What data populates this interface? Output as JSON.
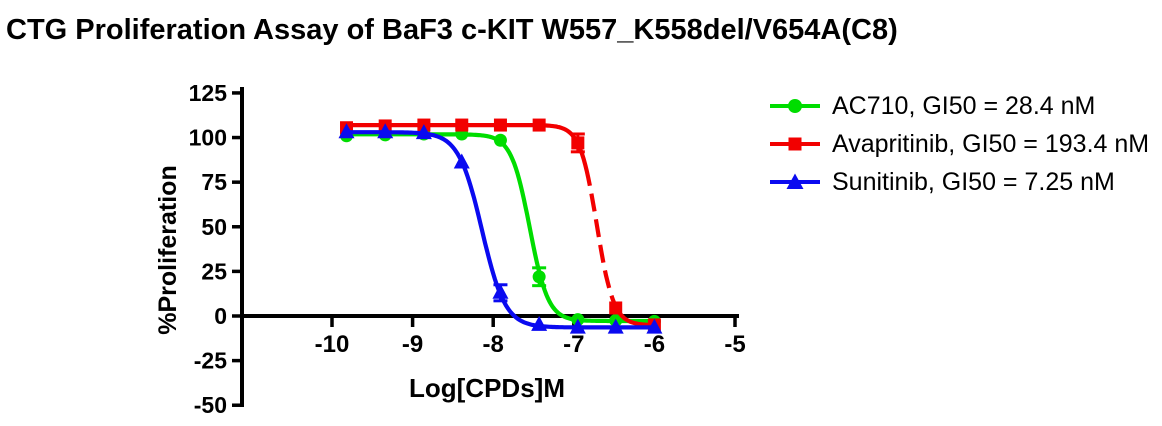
{
  "title": "CTG Proliferation Assay of BaF3 c-KIT W557_K558del/V654A(C8)",
  "legend": {
    "items": [
      {
        "label": "AC710, GI50 = 28.4 nM",
        "marker": "circle"
      },
      {
        "label": "Avapritinib, GI50 = 193.4 nM",
        "marker": "square"
      },
      {
        "label": "Sunitinib, GI50 = 7.25 nM",
        "marker": "triangle"
      }
    ]
  },
  "chart_data": {
    "type": "line",
    "title": "CTG Proliferation Assay of BaF3 c-KIT W557_K558del/V654A(C8)",
    "xlabel": "Log[CPDs]M",
    "ylabel": "%Proliferation",
    "xlim": [
      -10,
      -5
    ],
    "ylim": [
      -50,
      125
    ],
    "x_ticks": [
      -10,
      -9,
      -8,
      -7,
      -6,
      -5
    ],
    "y_ticks": [
      125,
      100,
      75,
      50,
      25,
      0,
      -25,
      -50
    ],
    "grid": false,
    "legend_position": "right",
    "x": [
      -9.82,
      -9.34,
      -8.86,
      -8.39,
      -7.91,
      -7.43,
      -6.95,
      -6.48,
      -6.0
    ],
    "series": [
      {
        "name": "AC710",
        "label": "AC710, GI50 = 28.4 nM",
        "gi50": "28.4 nM",
        "color": "#00dd00",
        "marker": "circle",
        "values": [
          101,
          101.5,
          102,
          102,
          98.5,
          22,
          -2,
          -2.5,
          -3
        ],
        "errors": [
          0,
          0,
          0,
          0,
          0,
          5,
          0,
          0,
          0
        ],
        "fit": {
          "top": 101.8,
          "bottom": -2.8,
          "log_gi50": -7.547,
          "hill": 3.8
        }
      },
      {
        "name": "Avapritinib",
        "label": "Avapritinib, GI50 = 193.4 nM",
        "gi50": "193.4 nM",
        "color": "#f20000",
        "marker": "square",
        "values": [
          105.5,
          106.5,
          107,
          107,
          107,
          107,
          97,
          4.5,
          -5
        ],
        "errors": [
          0,
          0,
          0,
          0,
          0,
          0,
          5,
          0,
          0
        ],
        "fit": {
          "top": 107,
          "bottom": -5.2,
          "log_gi50": -6.714,
          "hill": 4.2
        },
        "dashed_segment": {
          "from": -6.8,
          "to": -6.5
        }
      },
      {
        "name": "Sunitinib",
        "label": "Sunitinib, GI50 = 7.25 nM",
        "gi50": "7.25 nM",
        "color": "#0a0af0",
        "marker": "triangle",
        "values": [
          103,
          103,
          102.5,
          86,
          13,
          -5,
          -6.5,
          -6.5,
          -6.5
        ],
        "errors": [
          0,
          0,
          0,
          0,
          4.5,
          0,
          0,
          0,
          0
        ],
        "fit": {
          "top": 103,
          "bottom": -6.4,
          "log_gi50": -8.14,
          "hill": 3.0
        }
      }
    ]
  }
}
